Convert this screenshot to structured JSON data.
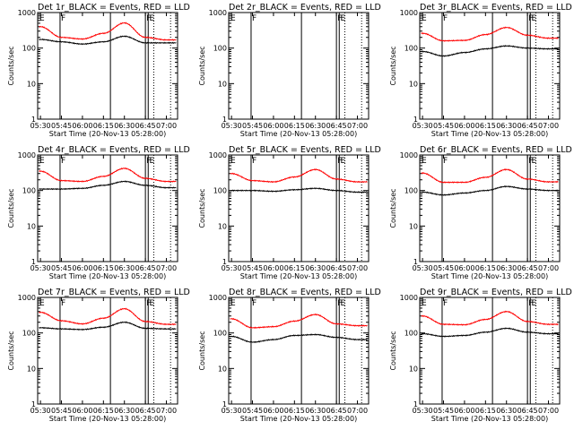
{
  "figure": {
    "x_ticks": [
      "05:30",
      "05:45",
      "06:00",
      "06:15",
      "06:30",
      "06:45",
      "07:00"
    ],
    "y_ticks": [
      "1",
      "10",
      "100",
      "1000"
    ],
    "ylabel": "Counts/sec",
    "xlabel": "Start Time (20-Nov-13 05:28:00)",
    "markers": [
      "E",
      "F",
      "F",
      "E"
    ]
  },
  "chart_data": [
    {
      "type": "line",
      "title": "Det 1r_BLACK = Events, RED = LLD",
      "x": [
        "05:30",
        "05:45",
        "06:00",
        "06:15",
        "06:30",
        "06:45",
        "07:00"
      ],
      "ylim": [
        1,
        1000
      ],
      "y_scale": "log",
      "series": [
        {
          "name": "Events",
          "color": "#000000",
          "values": [
            175,
            150,
            130,
            150,
            215,
            140,
            140
          ]
        },
        {
          "name": "LLD",
          "color": "#ff0000",
          "values": [
            400,
            200,
            180,
            260,
            510,
            200,
            170
          ]
        }
      ],
      "vlines_solid": [
        "05:44",
        "06:20",
        "06:45",
        "06:47"
      ],
      "vlines_dotted": [
        "06:51",
        "07:03"
      ]
    },
    {
      "type": "line",
      "title": "Det 2r_BLACK = Events, RED = LLD",
      "x": [
        "05:30",
        "05:45",
        "06:00",
        "06:15",
        "06:30",
        "06:45",
        "07:00"
      ],
      "ylim": [
        1,
        1000
      ],
      "y_scale": "log",
      "series": [],
      "vlines_solid": [
        "05:44",
        "06:20",
        "06:45",
        "06:47"
      ],
      "vlines_dotted": [
        "06:51",
        "07:03"
      ]
    },
    {
      "type": "line",
      "title": "Det 3r_BLACK = Events, RED = LLD",
      "x": [
        "05:30",
        "05:45",
        "06:00",
        "06:15",
        "06:30",
        "06:45",
        "07:00"
      ],
      "ylim": [
        1,
        1000
      ],
      "y_scale": "log",
      "series": [
        {
          "name": "Events",
          "color": "#000000",
          "values": [
            80,
            60,
            75,
            95,
            115,
            100,
            95
          ]
        },
        {
          "name": "LLD",
          "color": "#ff0000",
          "values": [
            260,
            160,
            165,
            240,
            380,
            230,
            190
          ]
        }
      ],
      "vlines_solid": [
        "05:44",
        "06:20",
        "06:45",
        "06:47"
      ],
      "vlines_dotted": [
        "06:51",
        "07:03"
      ]
    },
    {
      "type": "line",
      "title": "Det 4r_BLACK = Events, RED = LLD",
      "x": [
        "05:30",
        "05:45",
        "06:00",
        "06:15",
        "06:30",
        "06:45",
        "07:00"
      ],
      "ylim": [
        1,
        1000
      ],
      "y_scale": "log",
      "series": [
        {
          "name": "Events",
          "color": "#000000",
          "values": [
            110,
            110,
            115,
            140,
            180,
            140,
            120
          ]
        },
        {
          "name": "LLD",
          "color": "#ff0000",
          "values": [
            350,
            190,
            180,
            250,
            420,
            220,
            180
          ]
        }
      ],
      "vlines_solid": [
        "05:44",
        "06:20",
        "06:45",
        "06:47"
      ],
      "vlines_dotted": [
        "06:51",
        "07:03"
      ]
    },
    {
      "type": "line",
      "title": "Det 5r_BLACK = Events, RED = LLD",
      "x": [
        "05:30",
        "05:45",
        "06:00",
        "06:15",
        "06:30",
        "06:45",
        "07:00"
      ],
      "ylim": [
        1,
        1000
      ],
      "y_scale": "log",
      "series": [
        {
          "name": "Events",
          "color": "#000000",
          "values": [
            100,
            100,
            95,
            105,
            115,
            100,
            90
          ]
        },
        {
          "name": "LLD",
          "color": "#ff0000",
          "values": [
            300,
            190,
            175,
            240,
            390,
            210,
            175
          ]
        }
      ],
      "vlines_solid": [
        "05:44",
        "06:20",
        "06:45",
        "06:47"
      ],
      "vlines_dotted": [
        "06:51",
        "07:03"
      ]
    },
    {
      "type": "line",
      "title": "Det 6r_BLACK = Events, RED = LLD",
      "x": [
        "05:30",
        "05:45",
        "06:00",
        "06:15",
        "06:30",
        "06:45",
        "07:00"
      ],
      "ylim": [
        1,
        1000
      ],
      "y_scale": "log",
      "series": [
        {
          "name": "Events",
          "color": "#000000",
          "values": [
            90,
            75,
            85,
            100,
            130,
            110,
            100
          ]
        },
        {
          "name": "LLD",
          "color": "#ff0000",
          "values": [
            310,
            170,
            170,
            235,
            390,
            210,
            175
          ]
        }
      ],
      "vlines_solid": [
        "05:44",
        "06:20",
        "06:45",
        "06:47"
      ],
      "vlines_dotted": [
        "06:51",
        "07:03"
      ]
    },
    {
      "type": "line",
      "title": "Det 7r_BLACK = Events, RED = LLD",
      "x": [
        "05:30",
        "05:45",
        "06:00",
        "06:15",
        "06:30",
        "06:45",
        "07:00"
      ],
      "ylim": [
        1,
        1000
      ],
      "y_scale": "log",
      "series": [
        {
          "name": "Events",
          "color": "#000000",
          "values": [
            140,
            130,
            125,
            145,
            200,
            135,
            130
          ]
        },
        {
          "name": "LLD",
          "color": "#ff0000",
          "values": [
            380,
            220,
            180,
            260,
            480,
            210,
            175
          ]
        }
      ],
      "vlines_solid": [
        "05:44",
        "06:20",
        "06:45",
        "06:47"
      ],
      "vlines_dotted": [
        "06:51",
        "07:03"
      ]
    },
    {
      "type": "line",
      "title": "Det 8r_BLACK = Events, RED = LLD",
      "x": [
        "05:30",
        "05:45",
        "06:00",
        "06:15",
        "06:30",
        "06:45",
        "07:00"
      ],
      "ylim": [
        1,
        1000
      ],
      "y_scale": "log",
      "series": [
        {
          "name": "Events",
          "color": "#000000",
          "values": [
            80,
            55,
            65,
            85,
            90,
            75,
            65
          ]
        },
        {
          "name": "LLD",
          "color": "#ff0000",
          "values": [
            250,
            140,
            150,
            215,
            330,
            180,
            160
          ]
        }
      ],
      "vlines_solid": [
        "05:44",
        "06:20",
        "06:45",
        "06:47"
      ],
      "vlines_dotted": [
        "06:51",
        "07:03"
      ]
    },
    {
      "type": "line",
      "title": "Det 9r_BLACK = Events, RED = LLD",
      "x": [
        "05:30",
        "05:45",
        "06:00",
        "06:15",
        "06:30",
        "06:45",
        "07:00"
      ],
      "ylim": [
        1,
        1000
      ],
      "y_scale": "log",
      "series": [
        {
          "name": "Events",
          "color": "#000000",
          "values": [
            95,
            80,
            85,
            105,
            135,
            105,
            95
          ]
        },
        {
          "name": "LLD",
          "color": "#ff0000",
          "values": [
            300,
            175,
            170,
            240,
            400,
            210,
            175
          ]
        }
      ],
      "vlines_solid": [
        "05:44",
        "06:20",
        "06:45",
        "06:47"
      ],
      "vlines_dotted": [
        "06:51",
        "07:03"
      ]
    }
  ]
}
